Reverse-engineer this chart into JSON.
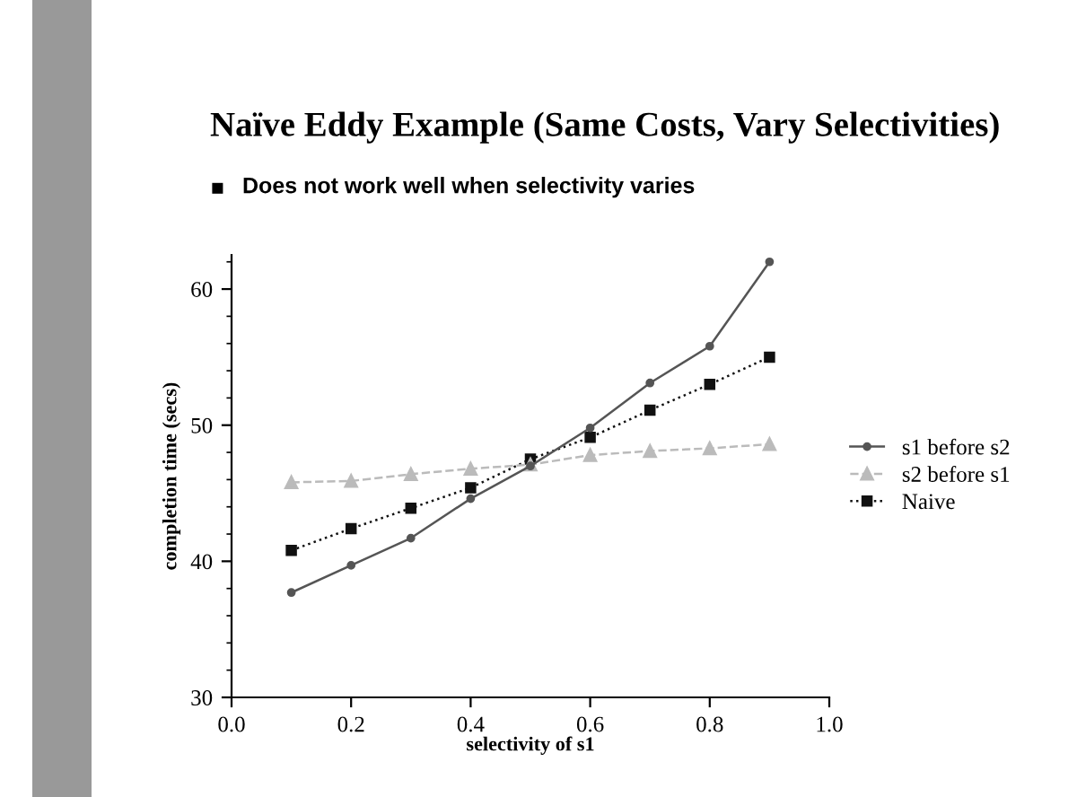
{
  "chart_data": {
    "type": "line",
    "title": "Naïve Eddy Example (Same Costs, Vary Selectivities)",
    "subtitle": "Does not work well when selectivity varies",
    "xlabel": "selectivity of s1",
    "ylabel": "completion time (secs)",
    "x": [
      0.1,
      0.2,
      0.3,
      0.4,
      0.5,
      0.6,
      0.7,
      0.8,
      0.9
    ],
    "series": [
      {
        "name": "s1 before s2",
        "color": "#555555",
        "marker": "circle",
        "line_style": "solid",
        "values": [
          37.7,
          39.7,
          41.7,
          44.6,
          47.0,
          49.8,
          53.1,
          55.8,
          62.0
        ]
      },
      {
        "name": "s2 before s1",
        "color": "#bbbbbb",
        "marker": "triangle",
        "line_style": "dashed",
        "values": [
          45.8,
          45.9,
          46.4,
          46.8,
          47.1,
          47.8,
          48.1,
          48.3,
          48.6
        ]
      },
      {
        "name": "Naive",
        "color": "#111111",
        "marker": "square",
        "line_style": "dotted",
        "values": [
          40.8,
          42.4,
          43.9,
          45.4,
          47.5,
          49.1,
          51.1,
          53.0,
          55.0
        ]
      }
    ],
    "xlim": [
      0.0,
      1.0
    ],
    "xticks": [
      {
        "value": 0.0,
        "label": "0.0"
      },
      0.2,
      0.4,
      0.6,
      0.8,
      {
        "value": 1.0,
        "label": "1.0"
      }
    ],
    "ylim": [
      30,
      62.5
    ],
    "yticks": [
      30,
      40,
      50,
      60
    ],
    "grid": false,
    "legend": "right"
  }
}
